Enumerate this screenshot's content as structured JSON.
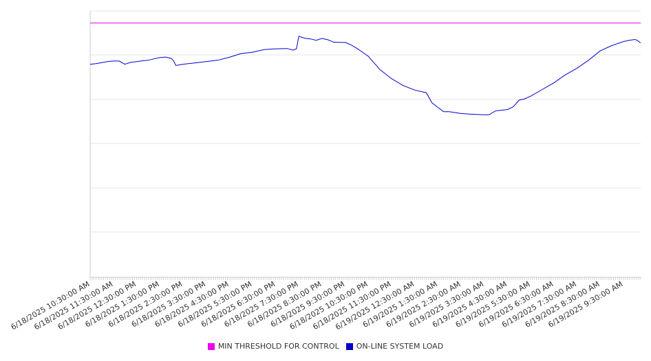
{
  "chart_data": {
    "type": "line",
    "title": "",
    "xlabel": "",
    "ylabel": "",
    "grid": true,
    "legend_position": "bottom",
    "x_tick_labels": [
      "6/18/2025 10:30:00 AM",
      "6/18/2025 11:30:00 AM",
      "6/18/2025 12:30:00 PM",
      "6/18/2025 1:30:00 PM",
      "6/18/2025 2:30:00 PM",
      "6/18/2025 3:30:00 PM",
      "6/18/2025 4:30:00 PM",
      "6/18/2025 5:30:00 PM",
      "6/18/2025 6:30:00 PM",
      "6/18/2025 7:30:00 PM",
      "6/18/2025 8:30:00 PM",
      "6/18/2025 9:30:00 PM",
      "6/18/2025 10:30:00 PM",
      "6/18/2025 11:30:00 PM",
      "6/19/2025 12:30:00 AM",
      "6/19/2025 1:30:00 AM",
      "6/19/2025 2:30:00 AM",
      "6/19/2025 3:30:00 AM",
      "6/19/2025 4:30:00 AM",
      "6/19/2025 5:30:00 AM",
      "6/19/2025 6:30:00 AM",
      "6/19/2025 7:30:00 AM",
      "6/19/2025 8:30:00 AM",
      "6/19/2025 9:30:00 AM"
    ],
    "x_range_hours": [
      0,
      23.75
    ],
    "y_range_fraction": [
      0,
      1
    ],
    "y_tick_labels": [],
    "series": [
      {
        "name": "MIN THRESHOLD FOR CONTROL",
        "color": "#ee00ee",
        "x_hours": [
          0,
          23.75
        ],
        "y_fraction": [
          0.955,
          0.955
        ]
      },
      {
        "name": "ON-LINE SYSTEM LOAD",
        "color": "#0000cc",
        "x_hours": [
          0,
          0.25,
          0.5,
          0.75,
          1.0,
          1.25,
          1.5,
          1.75,
          2.0,
          2.25,
          2.5,
          2.75,
          3.0,
          3.25,
          3.5,
          3.6,
          3.7,
          4.0,
          4.5,
          5.0,
          5.5,
          6.0,
          6.5,
          7.0,
          7.5,
          8.0,
          8.5,
          8.75,
          8.9,
          9.0,
          9.25,
          9.5,
          9.75,
          10.0,
          10.25,
          10.5,
          10.75,
          11.0,
          11.25,
          11.5,
          11.75,
          12.0,
          12.5,
          13.0,
          13.5,
          14.0,
          14.5,
          14.75,
          15.0,
          15.25,
          15.5,
          16.0,
          16.5,
          17.0,
          17.2,
          17.5,
          18.0,
          18.25,
          18.5,
          18.75,
          19.0,
          19.5,
          20.0,
          20.5,
          21.0,
          21.5,
          22.0,
          22.5,
          23.0,
          23.25,
          23.5,
          23.6,
          23.75
        ],
        "y_fraction": [
          0.8,
          0.802,
          0.806,
          0.81,
          0.812,
          0.812,
          0.8,
          0.807,
          0.81,
          0.813,
          0.815,
          0.82,
          0.825,
          0.827,
          0.822,
          0.812,
          0.795,
          0.8,
          0.805,
          0.81,
          0.815,
          0.826,
          0.84,
          0.845,
          0.855,
          0.858,
          0.859,
          0.853,
          0.858,
          0.905,
          0.898,
          0.895,
          0.89,
          0.897,
          0.892,
          0.883,
          0.882,
          0.882,
          0.873,
          0.86,
          0.845,
          0.83,
          0.78,
          0.746,
          0.72,
          0.703,
          0.693,
          0.655,
          0.638,
          0.622,
          0.622,
          0.615,
          0.612,
          0.61,
          0.61,
          0.625,
          0.63,
          0.64,
          0.665,
          0.67,
          0.68,
          0.705,
          0.73,
          0.76,
          0.785,
          0.815,
          0.85,
          0.87,
          0.885,
          0.89,
          0.893,
          0.89,
          0.88
        ]
      }
    ]
  }
}
